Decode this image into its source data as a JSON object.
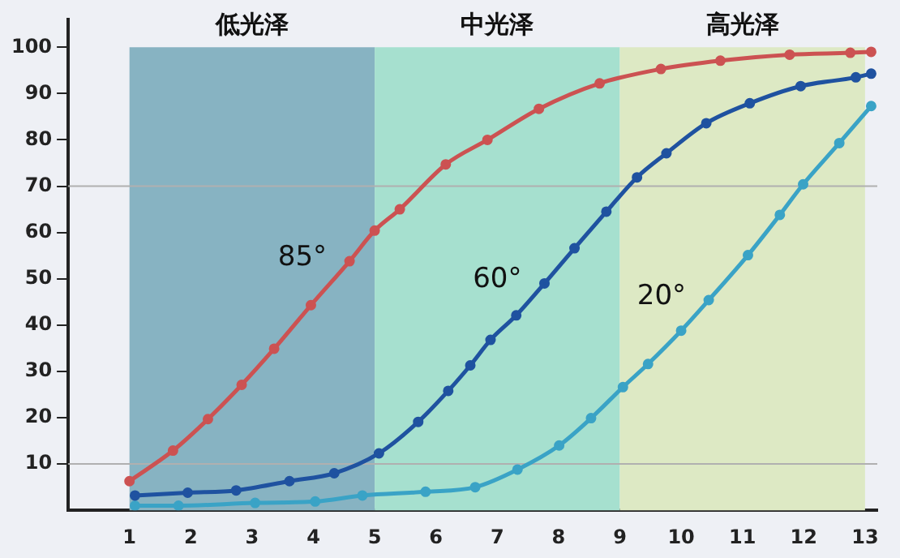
{
  "chart_data": {
    "type": "line",
    "marker": "circle",
    "grid": false,
    "legend": false,
    "xlim": [
      0,
      13.2
    ],
    "xticks": [
      {
        "value": 0,
        "label": null
      },
      1,
      2,
      3,
      4,
      5,
      6,
      7,
      8,
      9,
      10,
      11,
      12,
      13
    ],
    "ylim": [
      0,
      106
    ],
    "yticks": [
      10,
      20,
      30,
      40,
      50,
      60,
      70,
      80,
      90,
      100
    ],
    "bands": [
      {
        "axis": "x",
        "from": 1,
        "to": 5,
        "label": "低光泽",
        "color": "#87b3c2"
      },
      {
        "axis": "x",
        "from": 5,
        "to": 9,
        "label": "中光泽",
        "color": "#a6e0cf"
      },
      {
        "axis": "x",
        "from": 9,
        "to": 13,
        "label": "高光泽",
        "color": "#dde9c4"
      }
    ],
    "ref_lines": [
      {
        "axis": "y",
        "value": 10,
        "color": "#b0b0b0"
      },
      {
        "axis": "y",
        "value": 70,
        "color": "#b0b0b0"
      }
    ],
    "series": [
      {
        "name": "85°",
        "color": "#cc5252",
        "x": [
          1,
          1.71,
          2.28,
          2.83,
          3.36,
          3.96,
          4.59,
          5,
          5.41,
          6.16,
          6.84,
          7.68,
          8.67,
          9.67,
          10.64,
          11.77,
          12.76,
          13.1
        ],
        "values": [
          6.3,
          12.9,
          19.7,
          27.1,
          34.9,
          44.3,
          53.8,
          60.4,
          65,
          74.7,
          80,
          86.7,
          92.2,
          95.3,
          97.1,
          98.4,
          98.8,
          99
        ]
      },
      {
        "name": "60°",
        "color": "#1f52a0",
        "x": [
          1.09,
          1.95,
          2.74,
          3.61,
          4.34,
          5.07,
          5.71,
          6.2,
          6.56,
          6.89,
          7.31,
          7.77,
          8.26,
          8.78,
          9.28,
          9.76,
          10.41,
          11.12,
          11.95,
          12.85,
          13.1
        ],
        "values": [
          3.2,
          3.8,
          4.3,
          6.3,
          8,
          12.3,
          19.1,
          25.8,
          31.3,
          36.8,
          42.1,
          49,
          56.6,
          64.5,
          71.9,
          77.1,
          83.6,
          87.9,
          91.6,
          93.5,
          94.3
        ]
      },
      {
        "name": "20°",
        "color": "#3aa3c6",
        "x": [
          1.09,
          1.8,
          3.05,
          4.03,
          4.8,
          5.83,
          6.64,
          7.33,
          8.01,
          8.53,
          9.05,
          9.46,
          10,
          10.45,
          11.09,
          11.61,
          11.99,
          12.58,
          13.1
        ],
        "values": [
          1,
          1,
          1.6,
          1.9,
          3.2,
          4,
          5,
          8.8,
          14,
          19.9,
          26.6,
          31.6,
          38.8,
          45.4,
          55.1,
          63.8,
          70.4,
          79.3,
          87.3
        ]
      }
    ]
  }
}
